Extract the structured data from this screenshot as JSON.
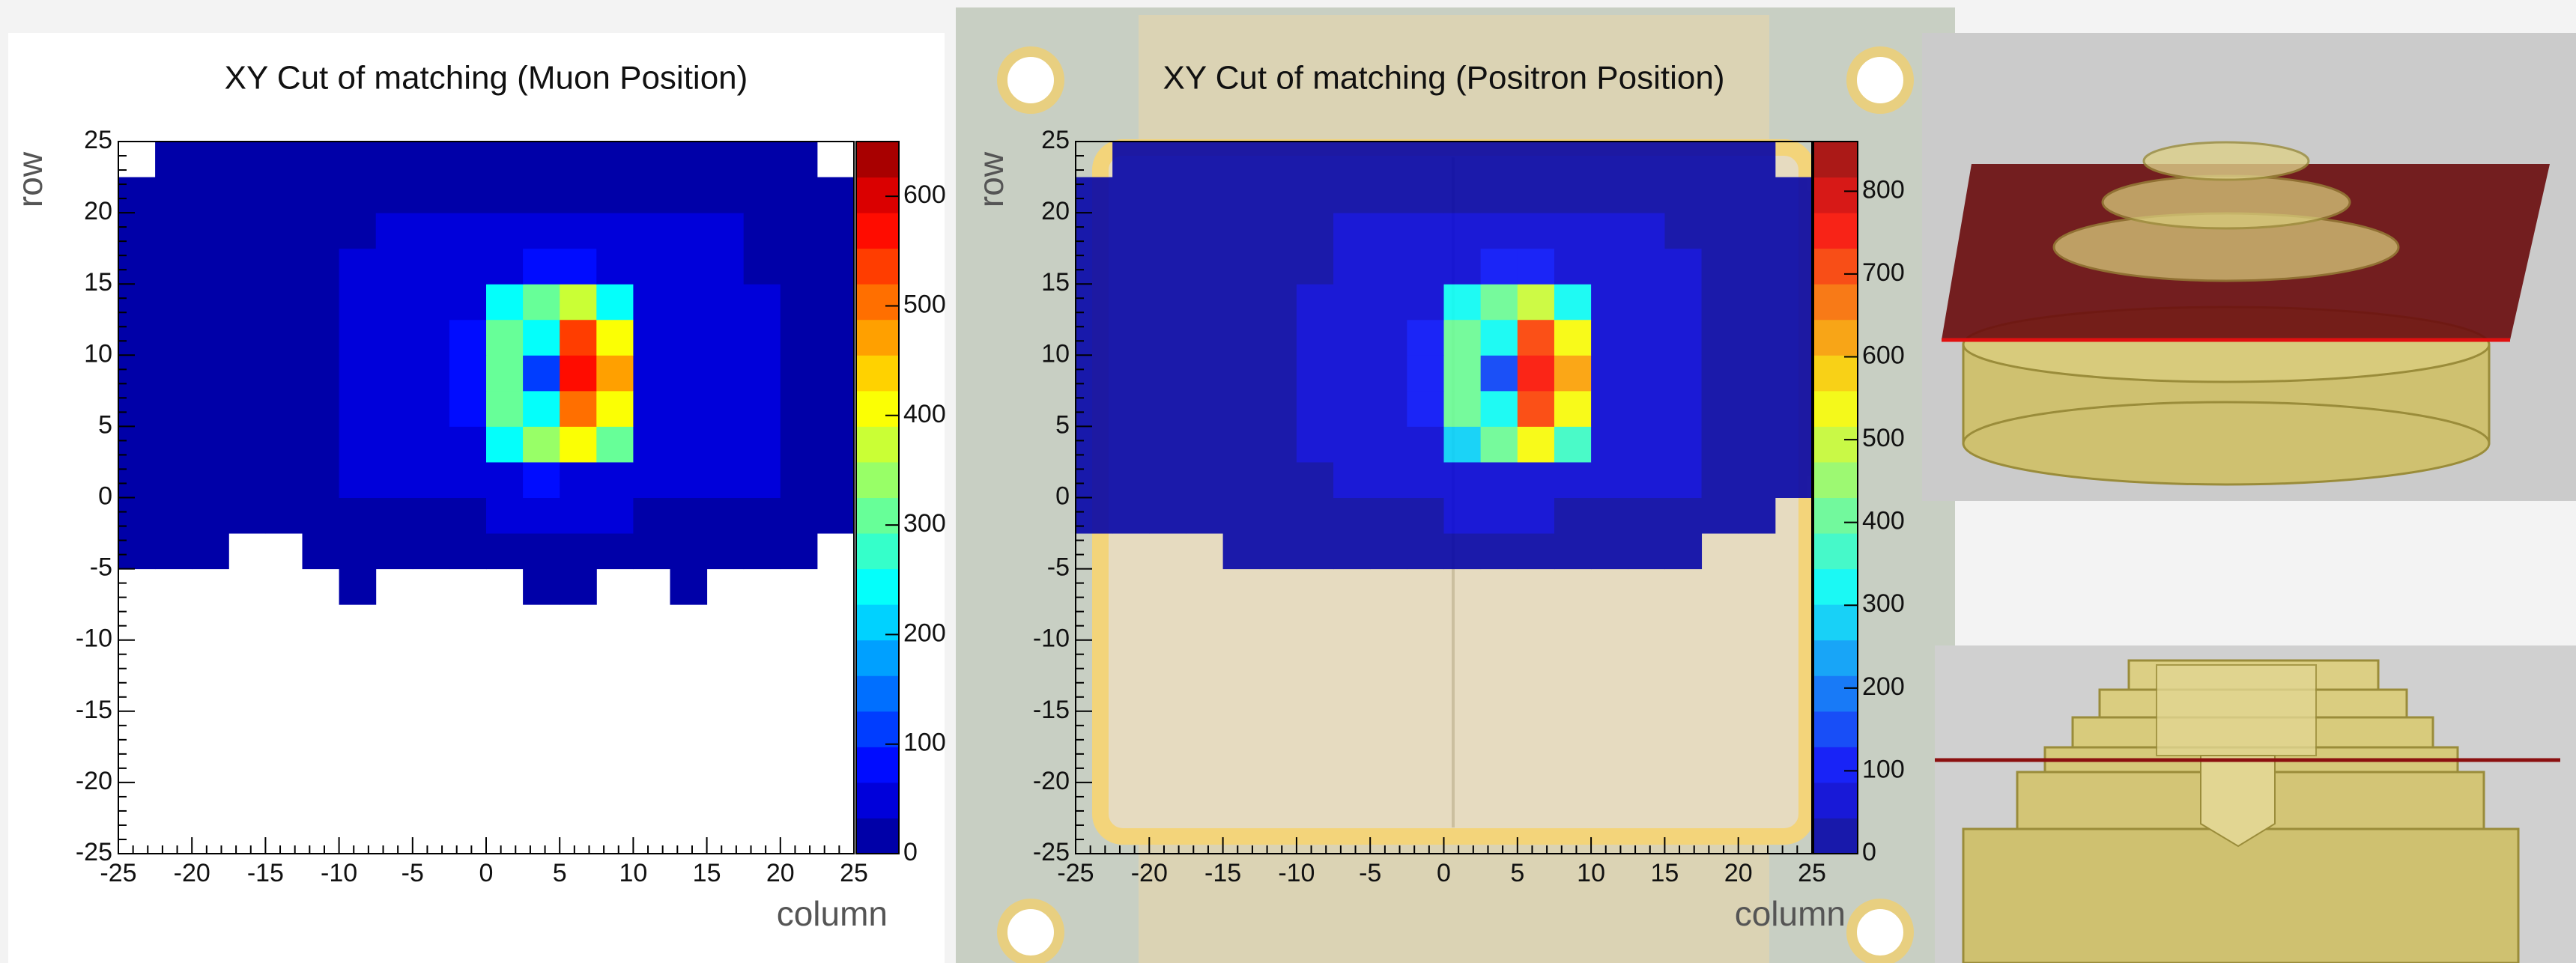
{
  "chart_data": [
    {
      "type": "heatmap",
      "title": "XY Cut of matching (Muon Position)",
      "xlabel": "column",
      "ylabel": "row",
      "xlim": [
        -25,
        25
      ],
      "ylim": [
        -25,
        25
      ],
      "xticks": [
        -25,
        -20,
        -15,
        -10,
        -5,
        0,
        5,
        10,
        15,
        20,
        25
      ],
      "yticks": [
        -25,
        -20,
        -15,
        -10,
        -5,
        0,
        5,
        10,
        15,
        20,
        25
      ],
      "zlim": [
        0,
        650
      ],
      "zticks": [
        0,
        100,
        200,
        300,
        400,
        500,
        600
      ],
      "xbins": [
        -25,
        -22.5,
        -20,
        -17.5,
        -15,
        -12.5,
        -10,
        -7.5,
        -5,
        -2.5,
        0,
        2.5,
        5,
        7.5,
        10,
        12.5,
        15,
        17.5,
        20,
        22.5,
        25
      ],
      "ybins": [
        -25,
        -22.5,
        -20,
        -17.5,
        -15,
        -12.5,
        -10,
        -7.5,
        -5,
        -2.5,
        0,
        2.5,
        5,
        7.5,
        10,
        12.5,
        15,
        17.5,
        20,
        22.5,
        25
      ],
      "z": [
        [
          0,
          0,
          0,
          0,
          0,
          0,
          0,
          0,
          0,
          0,
          0,
          0,
          0,
          0,
          0,
          0,
          0,
          0,
          0,
          0
        ],
        [
          0,
          0,
          0,
          0,
          0,
          0,
          0,
          0,
          0,
          0,
          0,
          0,
          0,
          0,
          0,
          0,
          0,
          0,
          0,
          0
        ],
        [
          0,
          0,
          0,
          0,
          0,
          0,
          0,
          0,
          0,
          0,
          0,
          0,
          0,
          0,
          0,
          0,
          0,
          0,
          0,
          0
        ],
        [
          0,
          0,
          0,
          0,
          0,
          0,
          0,
          0,
          0,
          0,
          0,
          0,
          0,
          0,
          0,
          0,
          0,
          0,
          0,
          0
        ],
        [
          0,
          0,
          0,
          0,
          0,
          0,
          0,
          0,
          0,
          0,
          0,
          0,
          0,
          0,
          0,
          0,
          0,
          0,
          0,
          0
        ],
        [
          0,
          0,
          0,
          0,
          0,
          0,
          0,
          0,
          0,
          0,
          0,
          0,
          0,
          0,
          0,
          0,
          0,
          0,
          0,
          0
        ],
        [
          0,
          0,
          0,
          0,
          0,
          0,
          0,
          0,
          0,
          0,
          0,
          0,
          0,
          0,
          0,
          0,
          0,
          0,
          0,
          0
        ],
        [
          0,
          0,
          0,
          0,
          0,
          0,
          2,
          0,
          0,
          0,
          0,
          2,
          3,
          0,
          0,
          2,
          0,
          0,
          0,
          0
        ],
        [
          5,
          3,
          2,
          0,
          0,
          4,
          6,
          5,
          4,
          6,
          8,
          8,
          6,
          6,
          5,
          6,
          4,
          5,
          2,
          0
        ],
        [
          8,
          6,
          5,
          4,
          3,
          10,
          25,
          30,
          30,
          32,
          35,
          35,
          35,
          33,
          32,
          30,
          28,
          30,
          10,
          6
        ],
        [
          10,
          8,
          6,
          5,
          6,
          20,
          35,
          40,
          40,
          45,
          60,
          70,
          65,
          50,
          45,
          40,
          38,
          35,
          12,
          8
        ],
        [
          12,
          10,
          8,
          6,
          7,
          25,
          38,
          42,
          45,
          50,
          250,
          330,
          420,
          300,
          50,
          42,
          40,
          36,
          15,
          10
        ],
        [
          12,
          10,
          8,
          6,
          7,
          25,
          38,
          42,
          50,
          80,
          320,
          260,
          520,
          420,
          60,
          42,
          40,
          36,
          15,
          10
        ],
        [
          12,
          10,
          8,
          6,
          7,
          25,
          38,
          42,
          50,
          90,
          300,
          120,
          560,
          480,
          60,
          42,
          40,
          36,
          15,
          10
        ],
        [
          12,
          10,
          8,
          6,
          7,
          25,
          38,
          42,
          48,
          80,
          320,
          250,
          540,
          400,
          55,
          42,
          40,
          36,
          15,
          10
        ],
        [
          12,
          10,
          8,
          6,
          7,
          25,
          38,
          42,
          45,
          55,
          250,
          320,
          380,
          250,
          48,
          42,
          40,
          36,
          15,
          10
        ],
        [
          10,
          10,
          8,
          6,
          6,
          22,
          36,
          40,
          42,
          45,
          60,
          80,
          70,
          50,
          44,
          40,
          38,
          32,
          12,
          8
        ],
        [
          10,
          8,
          6,
          5,
          5,
          18,
          32,
          38,
          40,
          42,
          42,
          42,
          42,
          40,
          40,
          38,
          35,
          30,
          10,
          8
        ],
        [
          6,
          5,
          5,
          4,
          4,
          10,
          20,
          28,
          30,
          30,
          30,
          30,
          30,
          30,
          28,
          28,
          25,
          20,
          8,
          5
        ],
        [
          0,
          2,
          2,
          3,
          2,
          3,
          3,
          4,
          4,
          3,
          3,
          4,
          4,
          5,
          4,
          3,
          3,
          2,
          2,
          0
        ]
      ]
    },
    {
      "type": "heatmap",
      "title": "XY Cut of matching (Positron Position)",
      "xlabel": "column",
      "ylabel": "row",
      "xlim": [
        -25,
        25
      ],
      "ylim": [
        -25,
        25
      ],
      "xticks": [
        -25,
        -20,
        -15,
        -10,
        -5,
        0,
        5,
        10,
        15,
        20,
        25
      ],
      "yticks": [
        -25,
        -20,
        -15,
        -10,
        -5,
        0,
        5,
        10,
        15,
        20,
        25
      ],
      "zlim": [
        0,
        860
      ],
      "zticks": [
        0,
        100,
        200,
        300,
        400,
        500,
        600,
        700,
        800
      ],
      "xbins": [
        -25,
        -22.5,
        -20,
        -17.5,
        -15,
        -12.5,
        -10,
        -7.5,
        -5,
        -2.5,
        0,
        2.5,
        5,
        7.5,
        10,
        12.5,
        15,
        17.5,
        20,
        22.5,
        25
      ],
      "ybins": [
        -25,
        -22.5,
        -20,
        -17.5,
        -15,
        -12.5,
        -10,
        -7.5,
        -5,
        -2.5,
        0,
        2.5,
        5,
        7.5,
        10,
        12.5,
        15,
        17.5,
        20,
        22.5,
        25
      ],
      "z": [
        [
          0,
          0,
          0,
          0,
          0,
          0,
          0,
          0,
          0,
          0,
          0,
          0,
          0,
          0,
          0,
          0,
          0,
          0,
          0,
          0
        ],
        [
          0,
          0,
          0,
          0,
          0,
          0,
          0,
          0,
          0,
          0,
          0,
          0,
          0,
          0,
          0,
          0,
          0,
          0,
          0,
          0
        ],
        [
          0,
          0,
          0,
          0,
          0,
          0,
          0,
          0,
          0,
          0,
          0,
          0,
          0,
          0,
          0,
          0,
          0,
          0,
          0,
          0
        ],
        [
          0,
          0,
          0,
          0,
          0,
          0,
          0,
          0,
          0,
          0,
          0,
          0,
          0,
          0,
          0,
          0,
          0,
          0,
          0,
          0
        ],
        [
          0,
          0,
          0,
          0,
          0,
          0,
          0,
          0,
          0,
          0,
          0,
          0,
          0,
          0,
          0,
          0,
          0,
          0,
          0,
          0
        ],
        [
          0,
          0,
          0,
          0,
          0,
          0,
          0,
          0,
          0,
          0,
          0,
          0,
          0,
          0,
          0,
          0,
          0,
          0,
          0,
          0
        ],
        [
          0,
          0,
          0,
          0,
          0,
          0,
          0,
          0,
          0,
          0,
          0,
          0,
          0,
          0,
          0,
          0,
          0,
          0,
          0,
          0
        ],
        [
          0,
          0,
          0,
          0,
          0,
          0,
          0,
          0,
          0,
          0,
          0,
          0,
          0,
          0,
          0,
          0,
          0,
          0,
          0,
          0
        ],
        [
          0,
          0,
          0,
          0,
          2,
          3,
          4,
          4,
          3,
          4,
          5,
          5,
          4,
          4,
          4,
          3,
          2,
          0,
          0,
          0
        ],
        [
          3,
          2,
          2,
          2,
          3,
          8,
          30,
          38,
          40,
          42,
          45,
          45,
          44,
          42,
          40,
          38,
          30,
          10,
          2,
          0
        ],
        [
          5,
          4,
          3,
          3,
          5,
          15,
          40,
          50,
          52,
          55,
          70,
          85,
          80,
          60,
          55,
          50,
          45,
          15,
          5,
          3
        ],
        [
          6,
          5,
          4,
          4,
          6,
          20,
          45,
          52,
          55,
          60,
          300,
          420,
          540,
          380,
          60,
          52,
          48,
          18,
          6,
          4
        ],
        [
          6,
          5,
          4,
          4,
          6,
          20,
          45,
          52,
          60,
          100,
          420,
          330,
          700,
          540,
          75,
          52,
          48,
          18,
          6,
          4
        ],
        [
          6,
          5,
          4,
          4,
          6,
          20,
          45,
          52,
          60,
          110,
          400,
          150,
          760,
          620,
          75,
          52,
          48,
          18,
          6,
          4
        ],
        [
          6,
          5,
          4,
          4,
          6,
          20,
          45,
          52,
          58,
          100,
          420,
          320,
          720,
          520,
          70,
          52,
          48,
          18,
          6,
          4
        ],
        [
          6,
          5,
          4,
          4,
          6,
          20,
          45,
          52,
          55,
          70,
          320,
          420,
          500,
          320,
          60,
          52,
          48,
          18,
          6,
          4
        ],
        [
          5,
          5,
          4,
          4,
          5,
          18,
          42,
          50,
          52,
          56,
          75,
          100,
          90,
          62,
          55,
          50,
          46,
          16,
          5,
          4
        ],
        [
          5,
          4,
          3,
          3,
          4,
          14,
          38,
          46,
          50,
          52,
          52,
          52,
          52,
          50,
          50,
          46,
          42,
          14,
          4,
          3
        ],
        [
          3,
          3,
          3,
          2,
          3,
          8,
          25,
          34,
          36,
          36,
          36,
          36,
          36,
          36,
          34,
          34,
          30,
          10,
          3,
          2
        ],
        [
          0,
          1,
          1,
          2,
          1,
          2,
          2,
          3,
          3,
          2,
          2,
          3,
          3,
          4,
          3,
          2,
          2,
          1,
          1,
          0
        ]
      ]
    }
  ]
}
